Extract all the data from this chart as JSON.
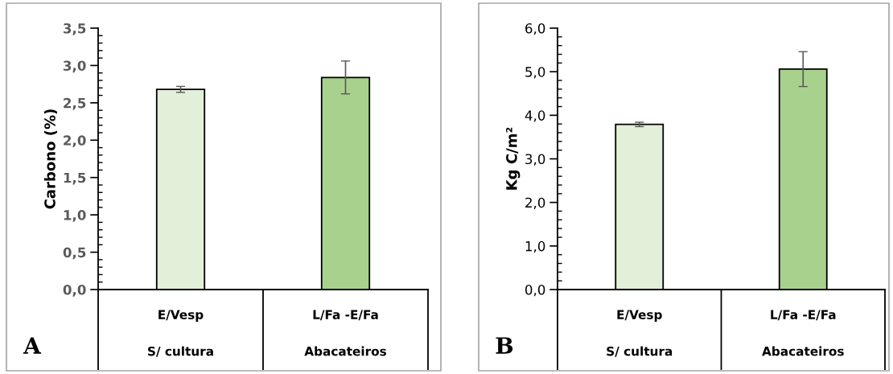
{
  "chart_data": [
    {
      "type": "bar",
      "ylabel": "Carbono (%)",
      "categories": [
        "E/Vesp\nS/ cultura",
        "L/Fa -E/Fa\nAbacateiros"
      ],
      "values": [
        2.68,
        2.84
      ],
      "errors": [
        0.04,
        0.22
      ],
      "colors": [
        "#e2efd9",
        "#a9d18e"
      ],
      "ylim": [
        0,
        3.5
      ],
      "yticks": [
        {
          "value": 0,
          "label": "0,0"
        },
        {
          "value": 0.5,
          "label": "0,5"
        },
        {
          "value": 1,
          "label": "1,0"
        },
        {
          "value": 1.5,
          "label": "1,5"
        },
        {
          "value": 2,
          "label": "2,0"
        },
        {
          "value": 2.5,
          "label": "2,5"
        },
        {
          "value": 3,
          "label": "3,0"
        },
        {
          "value": 3.5,
          "label": "3,5"
        }
      ],
      "grid": false,
      "legend": false,
      "annotations": [
        "A"
      ]
    },
    {
      "type": "bar",
      "ylabel": "Kg C/m²",
      "categories": [
        "E/Vesp\nS/ cultura",
        "L/Fa -E/Fa\nAbacateiros"
      ],
      "values": [
        3.79,
        5.06
      ],
      "errors": [
        0.05,
        0.4
      ],
      "colors": [
        "#e2efd9",
        "#a9d18e"
      ],
      "ylim": [
        0,
        6
      ],
      "yticks": [
        {
          "value": 0,
          "label": "0,0"
        },
        {
          "value": 1,
          "label": "1,0"
        },
        {
          "value": 2,
          "label": "2,0"
        },
        {
          "value": 3,
          "label": "3,0"
        },
        {
          "value": 4,
          "label": "4,0"
        },
        {
          "value": 5,
          "label": "5,0"
        },
        {
          "value": 6,
          "label": "6,0"
        }
      ],
      "grid": false,
      "legend": false,
      "annotations": [
        "B"
      ]
    }
  ]
}
